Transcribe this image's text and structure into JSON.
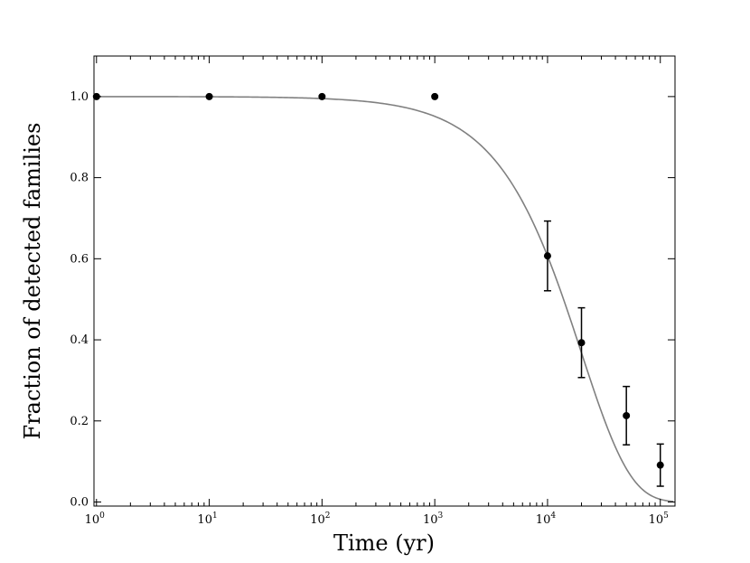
{
  "chart_data": {
    "type": "scatter",
    "title": "",
    "xlabel": "Time (yr)",
    "ylabel": "Fraction of detected families",
    "xscale": "log",
    "xlim": [
      0.95,
      135000
    ],
    "ylim": [
      -0.01,
      1.1
    ],
    "grid": false,
    "x_ticks": [
      {
        "value": 1,
        "base": "10",
        "exp": "0"
      },
      {
        "value": 10,
        "base": "10",
        "exp": "1"
      },
      {
        "value": 100,
        "base": "10",
        "exp": "2"
      },
      {
        "value": 1000,
        "base": "10",
        "exp": "3"
      },
      {
        "value": 10000,
        "base": "10",
        "exp": "4"
      },
      {
        "value": 100000,
        "base": "10",
        "exp": "5"
      }
    ],
    "y_ticks": [
      {
        "value": 0.0,
        "label": "0.0"
      },
      {
        "value": 0.2,
        "label": "0.2"
      },
      {
        "value": 0.4,
        "label": "0.4"
      },
      {
        "value": 0.6,
        "label": "0.6"
      },
      {
        "value": 0.8,
        "label": "0.8"
      },
      {
        "value": 1.0,
        "label": "1.0"
      }
    ],
    "points": [
      {
        "x": 1,
        "y": 1.0,
        "yerr": 0
      },
      {
        "x": 10,
        "y": 1.0,
        "yerr": 0
      },
      {
        "x": 100,
        "y": 1.0,
        "yerr": 0
      },
      {
        "x": 1000,
        "y": 1.0,
        "yerr": 0
      },
      {
        "x": 10000,
        "y": 0.607,
        "yerr": 0.086
      },
      {
        "x": 20000,
        "y": 0.393,
        "yerr": 0.086
      },
      {
        "x": 50000,
        "y": 0.213,
        "yerr": 0.072
      },
      {
        "x": 100000,
        "y": 0.091,
        "yerr": 0.052
      }
    ],
    "fit_curve": {
      "color": "#808080",
      "function": "exp(-t/20000)",
      "tau": 20000,
      "x_range": [
        1,
        130000
      ]
    },
    "colors": {
      "points": "#000000",
      "curve": "#808080"
    }
  }
}
